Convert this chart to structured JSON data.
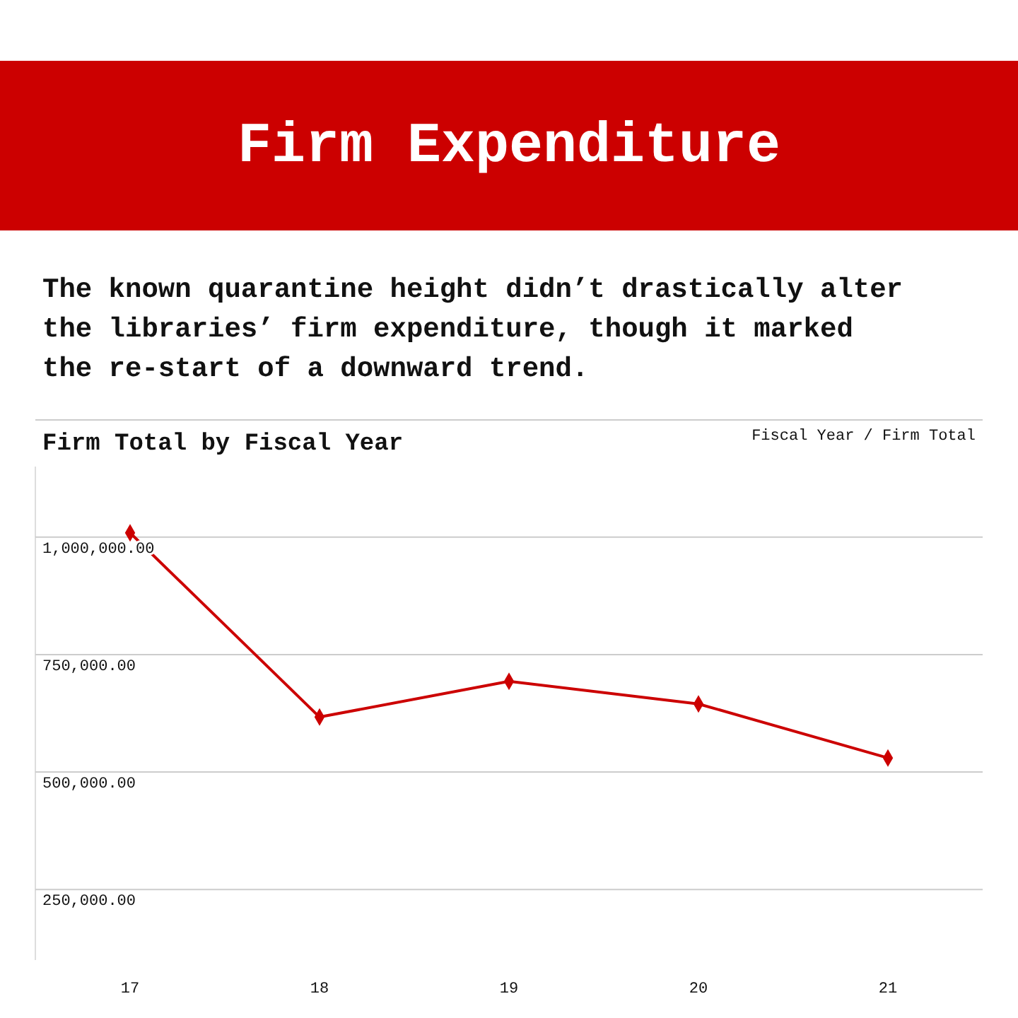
{
  "chart_data": {
    "type": "line",
    "title": "Firm Expenditure",
    "subtitle": "The known quarantine height didn’t drastically alter the libraries’ firm expenditure, though it marked the re-start of a downward trend.",
    "annotations": [
      "Firm Total by Fiscal Year",
      "Fiscal Year / Firm Total"
    ],
    "categories": [
      "17",
      "18",
      "19",
      "20",
      "21"
    ],
    "series": [
      {
        "color": "#cc0000",
        "values": [
          1009000,
          617000,
          693000,
          645000,
          530000
        ]
      }
    ],
    "ylim": [
      100000,
      1150000
    ],
    "yticks": [
      {
        "value": 250000,
        "label": "250,000.00"
      },
      {
        "value": 500000,
        "label": "500,000.00"
      },
      {
        "value": 750000,
        "label": "750,000.00"
      },
      {
        "value": 1000000,
        "label": "1,000,000.00"
      }
    ],
    "grid": "y",
    "marker": "diamond",
    "line_style": "solid"
  }
}
